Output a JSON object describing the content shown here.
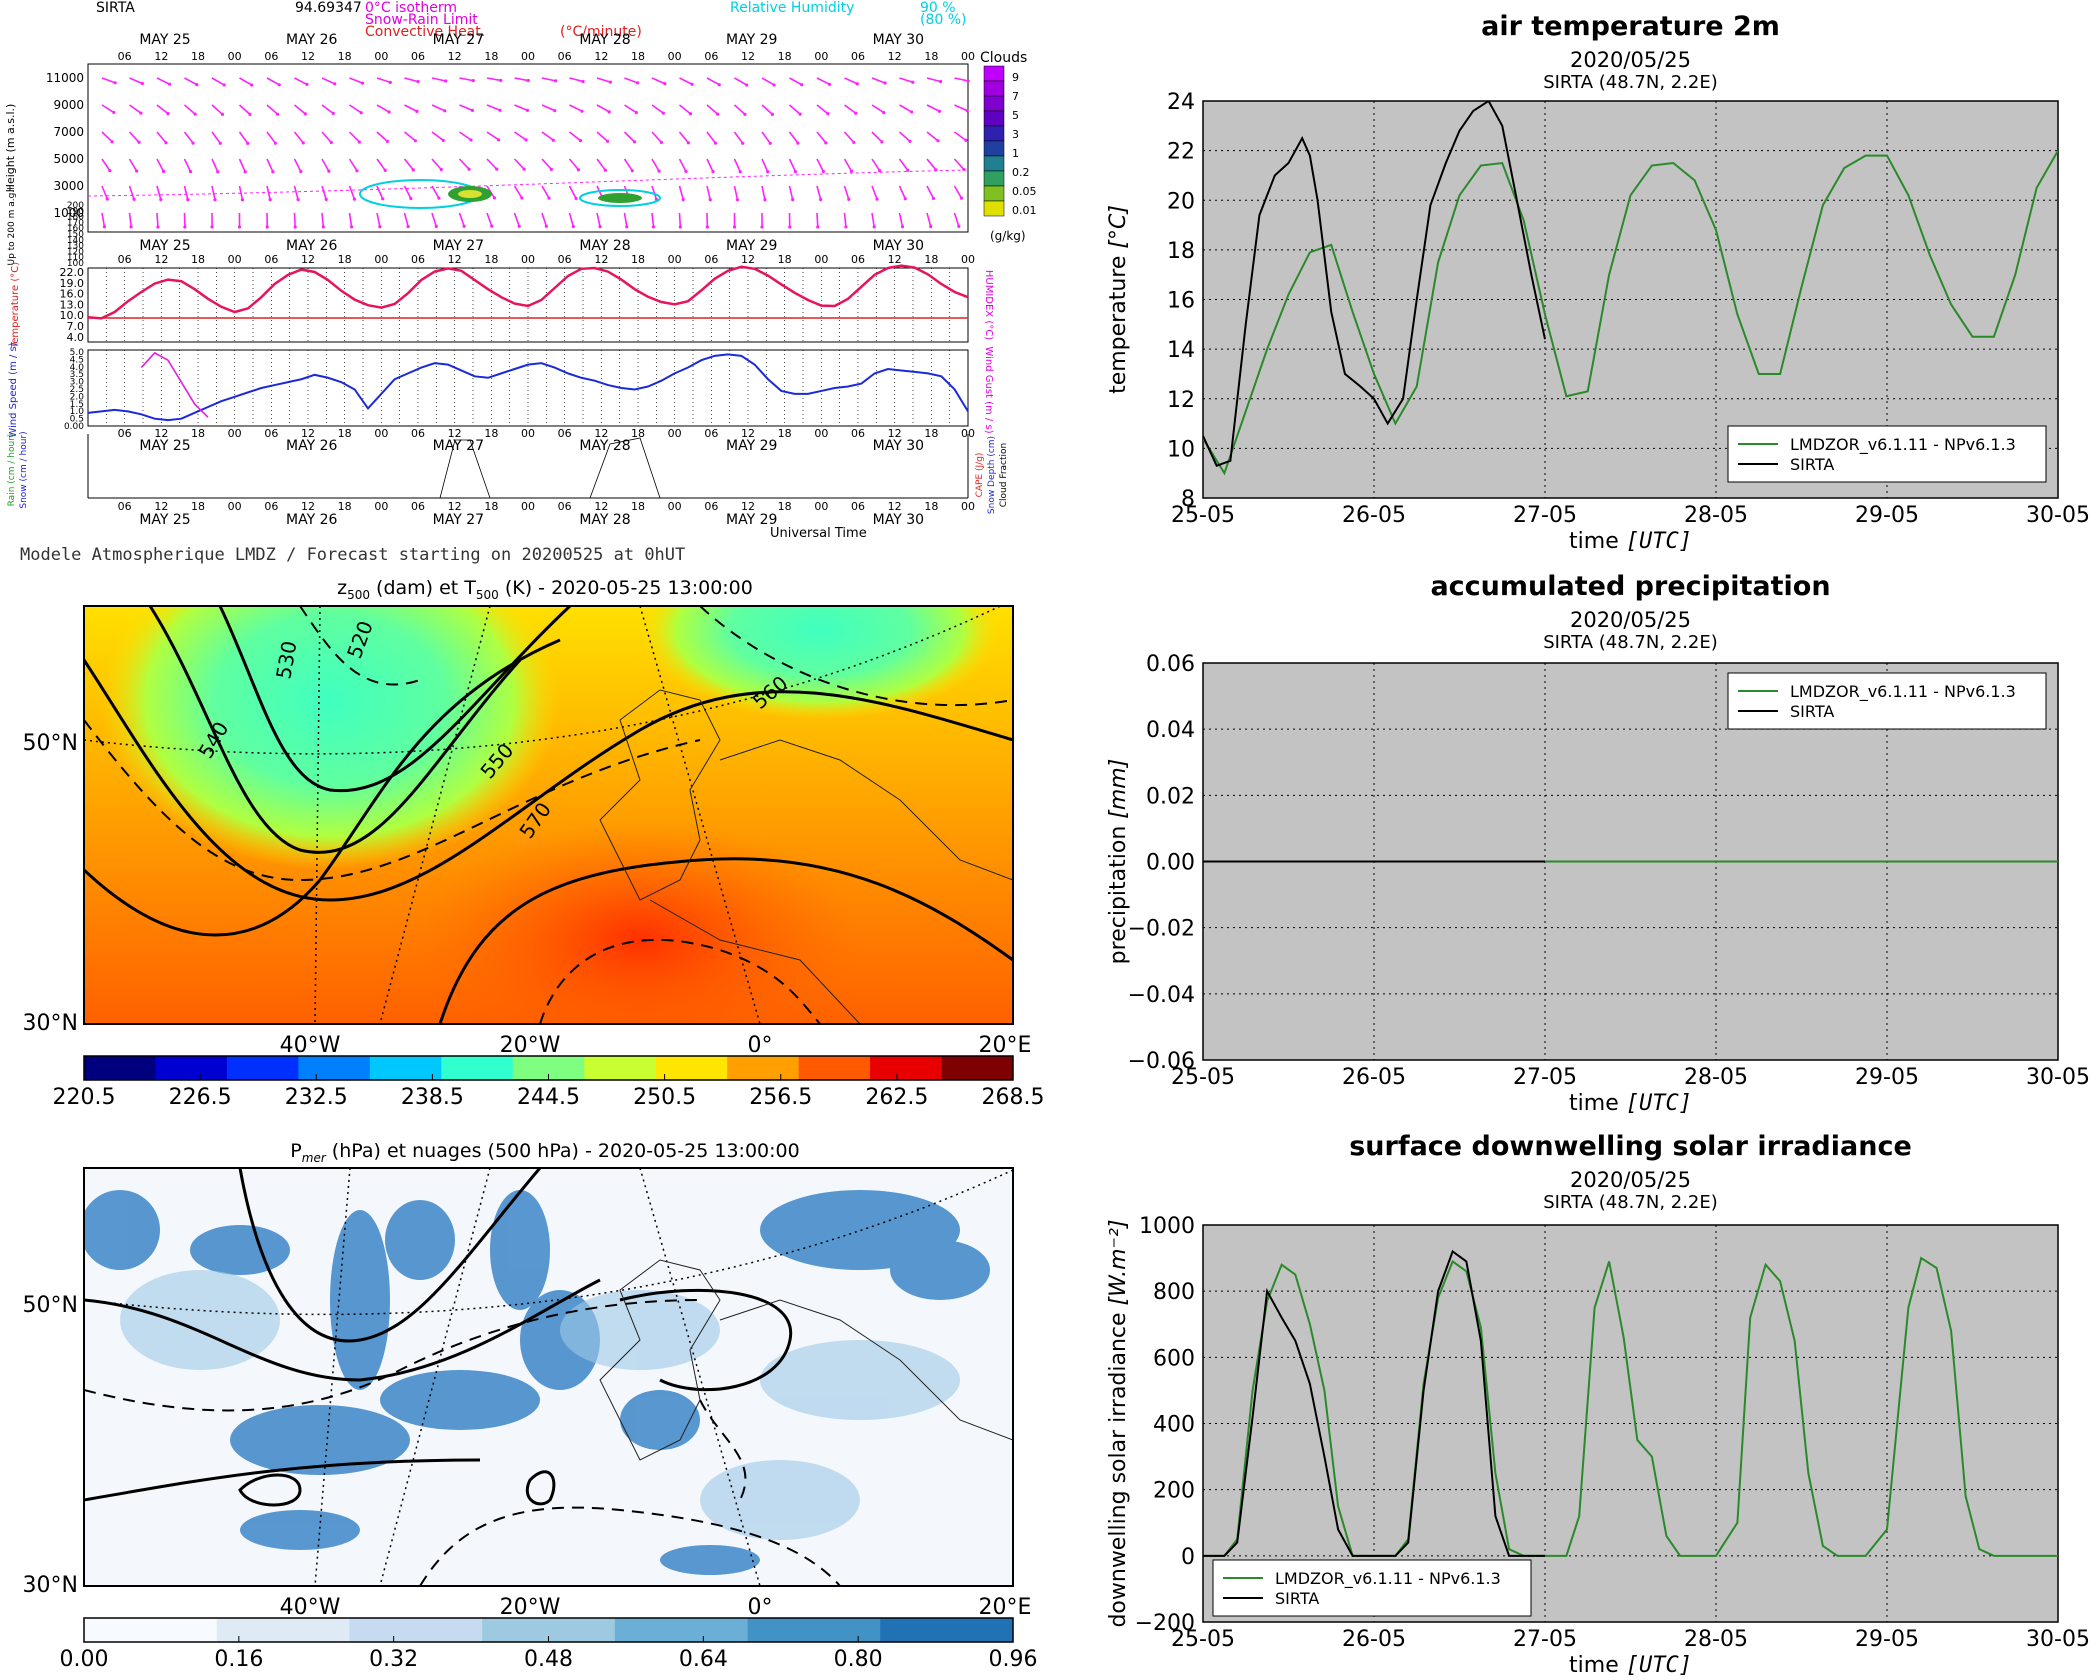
{
  "meteogram": {
    "site": "SIRTA",
    "site_value": "94.69347",
    "legend_isotherm": "0°C isotherm",
    "legend_snow": "Snow-Rain Limit",
    "legend_conv": "Convective Heat.",
    "legend_conv_unit": "(°C/minute)",
    "legend_rh": "Relative Humidity",
    "legend_rh_90": "90 %",
    "legend_rh_80": "(80 %)",
    "days": [
      "MAY 25",
      "MAY 26",
      "MAY 27",
      "MAY 28",
      "MAY 29",
      "MAY 30"
    ],
    "hours": [
      "06",
      "12",
      "18",
      "00"
    ],
    "height_label": "Height (m a.s.l.)",
    "height_ticks": [
      "11000",
      "9000",
      "7000",
      "5000",
      "3000",
      "1000"
    ],
    "low_label": "Up to 200 m a.g.l.",
    "low_ticks": [
      "200",
      "190",
      "180",
      "170",
      "160",
      "150",
      "140",
      "130",
      "120",
      "110",
      "100"
    ],
    "clouds_title": "Clouds",
    "clouds_ticks": [
      "9",
      "7",
      "5",
      "3",
      "1",
      "0.2",
      "0.05",
      "0.01"
    ],
    "clouds_unit": "(g/kg)",
    "temp_label": "Temperature (°C)",
    "humidex_label": "HUMIDEX (°C)",
    "temp_ticks": [
      "22.0",
      "19.0",
      "16.0",
      "13.0",
      "10.0",
      "7.0",
      "4.0"
    ],
    "wind_label": "Wind Speed (m / s)",
    "gust_label": "Wind Gust (m / s)",
    "wind_ticks": [
      "5.0",
      "4.5",
      "4.0",
      "3.5",
      "3.0",
      "2.5",
      "2.0",
      "1.5",
      "1.0",
      "0.5",
      "0.00"
    ],
    "rain_label": "Rain (cm / hour)",
    "snow_label": "Snow (cm / hour)",
    "cape_label": "CAPE (J/g)",
    "snowdepth_label": "Snow Depth (cm)",
    "cloudfrac_label": "Cloud Fraction",
    "universal_time": "Universal Time",
    "footer": "Modele Atmospherique LMDZ / Forecast starting on 20200525 at 0hUT",
    "temperature_series": [
      10.2,
      9.9,
      11.5,
      14.2,
      16.5,
      18.6,
      19.6,
      19.2,
      17.2,
      14.8,
      12.8,
      11.5,
      12.4,
      15.2,
      18.5,
      20.8,
      22.1,
      21.5,
      19.5,
      16.8,
      14.6,
      13.2,
      12.6,
      13.5,
      16.2,
      19.5,
      21.6,
      22.4,
      21.8,
      19.5,
      17.2,
      15.2,
      13.6,
      13.0,
      14.5,
      17.5,
      20.5,
      22.3,
      22.5,
      21.6,
      19.6,
      17.2,
      15.3,
      14.0,
      13.4,
      14.2,
      16.9,
      19.8,
      21.8,
      22.8,
      22.3,
      20.6,
      18.4,
      16.3,
      14.5,
      13.1,
      13.0,
      14.8,
      17.8,
      20.8,
      22.5,
      23.1,
      22.6,
      20.9,
      18.5,
      16.5,
      15.2
    ],
    "wind_series": [
      0.9,
      1.0,
      1.1,
      1.0,
      0.8,
      0.5,
      0.4,
      0.5,
      0.9,
      1.3,
      1.7,
      2.0,
      2.3,
      2.6,
      2.8,
      3.0,
      3.2,
      3.5,
      3.3,
      3.0,
      2.5,
      1.2,
      2.2,
      3.2,
      3.6,
      4.0,
      4.3,
      4.2,
      3.8,
      3.4,
      3.3,
      3.6,
      3.9,
      4.2,
      4.3,
      4.0,
      3.6,
      3.3,
      3.1,
      2.8,
      2.6,
      2.5,
      2.7,
      3.1,
      3.6,
      4.0,
      4.5,
      4.8,
      4.9,
      4.8,
      4.2,
      3.2,
      2.4,
      2.2,
      2.2,
      2.4,
      2.6,
      2.7,
      2.9,
      3.6,
      3.9,
      3.8,
      3.7,
      3.6,
      3.4,
      2.5,
      1.0
    ],
    "gust_series": [
      null,
      null,
      null,
      null,
      4.0,
      5.0,
      4.5,
      3.0,
      1.5,
      0.6
    ]
  },
  "map1": {
    "title_pre": "z",
    "title_sub1": "500",
    "title_mid": " (dam) et T",
    "title_sub2": "500",
    "title_post": " (K) - 2020-05-25 13:00:00",
    "lat_labels": [
      "50°N",
      "30°N"
    ],
    "lon_labels": [
      "40°W",
      "20°W",
      "0°",
      "20°E"
    ],
    "contour_labels": [
      "530",
      "520",
      "540",
      "550",
      "560",
      "570"
    ],
    "colorbar_ticks": [
      "220.5",
      "226.5",
      "232.5",
      "238.5",
      "244.5",
      "250.5",
      "256.5",
      "262.5",
      "268.5"
    ],
    "colorbar_colors": [
      "#00007f",
      "#0000d0",
      "#0030ff",
      "#0080ff",
      "#00c8ff",
      "#30ffcf",
      "#7fff80",
      "#c8ff30",
      "#ffe600",
      "#ffa000",
      "#ff5a00",
      "#e80000",
      "#7f0000"
    ]
  },
  "map2": {
    "title_pre": "P",
    "title_sub": "mer",
    "title_post": " (hPa) et nuages (500 hPa) - 2020-05-25 13:00:00",
    "lat_labels": [
      "50°N",
      "30°N"
    ],
    "lon_labels": [
      "40°W",
      "20°W",
      "0°",
      "20°E"
    ],
    "colorbar_ticks": [
      "0.00",
      "0.16",
      "0.32",
      "0.48",
      "0.64",
      "0.80",
      "0.96"
    ],
    "colorbar_colors": [
      "#f7fbff",
      "#deebf7",
      "#c6dbef",
      "#9ecae1",
      "#6baed6",
      "#4292c6",
      "#2171b5"
    ]
  },
  "chart_data": [
    {
      "type": "line",
      "title": "air temperature 2m",
      "subtitle": "2020/05/25",
      "subtitle2": "SIRTA (48.7N, 2.2E)",
      "xlabel": "time",
      "xlabel_unit": "[UTC]",
      "ylabel": "temperature",
      "ylabel_unit": "[°C]",
      "ylim": [
        8,
        24
      ],
      "yticks": [
        "8",
        "10",
        "12",
        "14",
        "16",
        "18",
        "20",
        "22",
        "24"
      ],
      "xlim": [
        0,
        5
      ],
      "xticks": [
        "25-05",
        "26-05",
        "27-05",
        "28-05",
        "29-05",
        "30-05"
      ],
      "grid": true,
      "legend_position": "lower-right",
      "series": [
        {
          "name": "LMDZOR_v6.1.11 - NPv6.1.3",
          "color": "#2a8a2a",
          "x": [
            0,
            0.125,
            0.25,
            0.375,
            0.5,
            0.625,
            0.75,
            0.875,
            1,
            1.125,
            1.25,
            1.375,
            1.5,
            1.625,
            1.75,
            1.875,
            2,
            2.125,
            2.25,
            2.375,
            2.5,
            2.625,
            2.75,
            2.875,
            3,
            3.125,
            3.25,
            3.375,
            3.5,
            3.625,
            3.75,
            3.875,
            4,
            4.125,
            4.25,
            4.375,
            4.5,
            4.625,
            4.75,
            4.875,
            5
          ],
          "y": [
            10.4,
            9.0,
            11.5,
            14.0,
            16.2,
            17.9,
            18.2,
            15.5,
            13.0,
            11.0,
            12.5,
            17.5,
            20.2,
            21.4,
            21.5,
            19.2,
            15.4,
            12.1,
            12.3,
            17.0,
            20.2,
            21.4,
            21.5,
            20.8,
            18.8,
            15.4,
            13.0,
            13.0,
            16.5,
            19.8,
            21.3,
            21.8,
            21.8,
            20.2,
            17.8,
            15.8,
            14.5,
            14.5,
            17.0,
            20.5,
            22.0
          ]
        },
        {
          "name": "SIRTA",
          "color": "#000000",
          "x": [
            0,
            0.08,
            0.16,
            0.25,
            0.33,
            0.42,
            0.5,
            0.58,
            0.625,
            0.67,
            0.75,
            0.83,
            0.92,
            1,
            1.08,
            1.17,
            1.25,
            1.33,
            1.42,
            1.5,
            1.58,
            1.67,
            1.75,
            1.83,
            1.92,
            2
          ],
          "y": [
            10.5,
            9.3,
            9.5,
            15.0,
            19.4,
            21.0,
            21.5,
            22.5,
            21.8,
            20.0,
            15.5,
            13.0,
            12.5,
            12.0,
            11.0,
            12.0,
            16.0,
            19.8,
            21.5,
            22.8,
            23.6,
            24.0,
            23.0,
            20.2,
            17.0,
            14.4
          ]
        }
      ]
    },
    {
      "type": "line",
      "title": "accumulated precipitation",
      "subtitle": "2020/05/25",
      "subtitle2": "SIRTA (48.7N, 2.2E)",
      "xlabel": "time",
      "xlabel_unit": "[UTC]",
      "ylabel": "precipitation",
      "ylabel_unit": "[mm]",
      "ylim": [
        -0.06,
        0.06
      ],
      "yticks": [
        "0.06",
        "0.04",
        "0.02",
        "0.00",
        "−0.02",
        "−0.04",
        "−0.06"
      ],
      "xlim": [
        0,
        5
      ],
      "xticks": [
        "25-05",
        "26-05",
        "27-05",
        "28-05",
        "29-05",
        "30-05"
      ],
      "grid": true,
      "legend_position": "upper-right",
      "series": [
        {
          "name": "LMDZOR_v6.1.11 - NPv6.1.3",
          "color": "#2a8a2a",
          "x": [
            0,
            5
          ],
          "y": [
            0,
            0
          ]
        },
        {
          "name": "SIRTA",
          "color": "#000000",
          "x": [
            0,
            2
          ],
          "y": [
            0,
            0
          ]
        }
      ]
    },
    {
      "type": "line",
      "title": "surface downwelling solar irradiance",
      "subtitle": "2020/05/25",
      "subtitle2": "SIRTA (48.7N, 2.2E)",
      "xlabel": "time",
      "xlabel_unit": "[UTC]",
      "ylabel": "downwelling solar irradiance",
      "ylabel_unit": "[W.m⁻²]",
      "ylim": [
        -200,
        1000
      ],
      "yticks": [
        "1000",
        "800",
        "600",
        "400",
        "200",
        "0",
        "−200"
      ],
      "xlim": [
        0,
        5
      ],
      "xticks": [
        "25-05",
        "26-05",
        "27-05",
        "28-05",
        "29-05",
        "30-05"
      ],
      "grid": true,
      "legend_position": "lower-left",
      "series": [
        {
          "name": "LMDZOR_v6.1.11 - NPv6.1.3",
          "color": "#2a8a2a",
          "x": [
            0,
            0.125,
            0.2,
            0.29,
            0.375,
            0.46,
            0.54,
            0.625,
            0.71,
            0.79,
            0.875,
            1,
            1.125,
            1.2,
            1.29,
            1.375,
            1.46,
            1.54,
            1.625,
            1.71,
            1.79,
            1.875,
            2,
            2.125,
            2.2,
            2.29,
            2.375,
            2.46,
            2.54,
            2.625,
            2.71,
            2.79,
            2.875,
            3,
            3.125,
            3.2,
            3.29,
            3.375,
            3.46,
            3.54,
            3.625,
            3.71,
            3.79,
            3.875,
            4,
            4.125,
            4.2,
            4.29,
            4.375,
            4.46,
            4.54,
            4.625,
            4.71,
            4.79,
            4.875,
            5
          ],
          "y": [
            0,
            0,
            50,
            500,
            770,
            880,
            850,
            700,
            500,
            150,
            0,
            0,
            0,
            50,
            520,
            780,
            890,
            860,
            690,
            250,
            20,
            0,
            0,
            0,
            120,
            750,
            890,
            660,
            350,
            300,
            60,
            0,
            0,
            0,
            100,
            720,
            880,
            830,
            650,
            250,
            30,
            0,
            0,
            0,
            80,
            750,
            900,
            870,
            680,
            180,
            20,
            0,
            0,
            0,
            0,
            0
          ]
        },
        {
          "name": "SIRTA",
          "color": "#000000",
          "x": [
            0,
            0.125,
            0.2,
            0.29,
            0.375,
            0.46,
            0.54,
            0.625,
            0.71,
            0.79,
            0.875,
            1,
            1.125,
            1.2,
            1.29,
            1.375,
            1.46,
            1.54,
            1.625,
            1.71,
            1.79,
            1.875,
            2
          ],
          "y": [
            0,
            0,
            40,
            420,
            800,
            720,
            650,
            520,
            300,
            80,
            0,
            0,
            0,
            40,
            500,
            800,
            920,
            890,
            650,
            120,
            0,
            0,
            0
          ]
        }
      ]
    }
  ]
}
